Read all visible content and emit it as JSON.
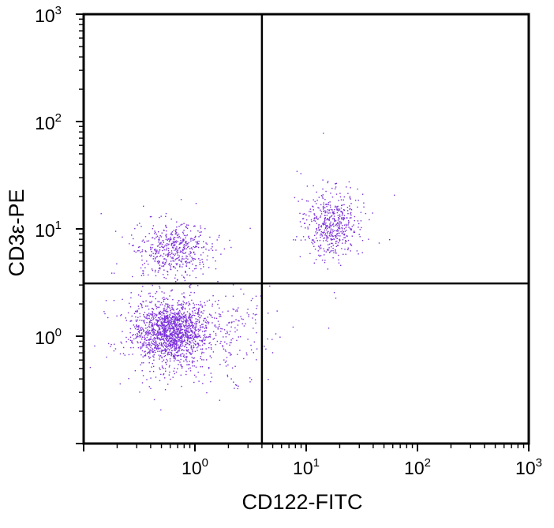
{
  "chart_data": {
    "type": "scatter",
    "title": "",
    "xlabel": "CD122-FITC",
    "ylabel": "CD3ε-PE",
    "xscale": "log",
    "yscale": "log",
    "xlim": [
      0.1,
      1000
    ],
    "ylim": [
      0.1,
      1000
    ],
    "x_tick_labels": [
      {
        "base": "10",
        "exp": "0",
        "value": 1
      },
      {
        "base": "10",
        "exp": "1",
        "value": 10
      },
      {
        "base": "10",
        "exp": "2",
        "value": 100
      },
      {
        "base": "10",
        "exp": "3",
        "value": 1000
      }
    ],
    "y_tick_labels": [
      {
        "base": "10",
        "exp": "0",
        "value": 1
      },
      {
        "base": "10",
        "exp": "1",
        "value": 10
      },
      {
        "base": "10",
        "exp": "2",
        "value": 100
      },
      {
        "base": "10",
        "exp": "3",
        "value": 1000
      }
    ],
    "quadrant_gate": {
      "x": 4.0,
      "y": 3.1
    },
    "grid": false,
    "legend": "none",
    "point_color": "#7b2fd9",
    "populations": [
      {
        "center": [
          0.6,
          1.1
        ],
        "count": 1700
      },
      {
        "center": [
          0.65,
          6.5
        ],
        "count": 520
      },
      {
        "center": [
          17,
          11
        ],
        "count": 520
      },
      {
        "center": [
          1.8,
          1.0
        ],
        "count": 160
      }
    ]
  }
}
